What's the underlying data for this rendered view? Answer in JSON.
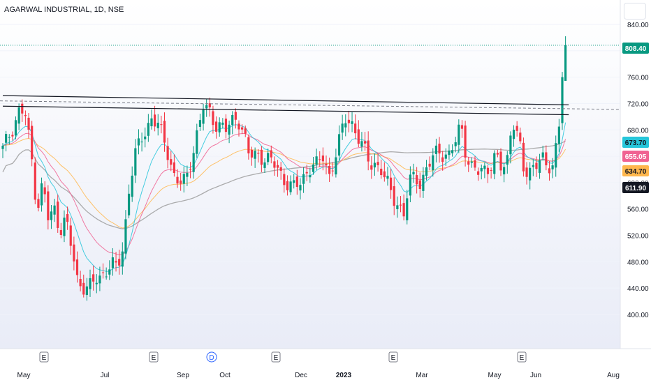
{
  "title": "AGARWAL INDUSTRIAL, 1D, NSE",
  "chart_data": {
    "type": "candlestick",
    "symbol": "AGARWAL INDUSTRIAL",
    "interval": "1D",
    "exchange": "NSE",
    "ylim": [
      390,
      850
    ],
    "y_ticks": [
      "840.00",
      "800.00",
      "760.00",
      "720.00",
      "680.00",
      "640.00",
      "600.00",
      "560.00",
      "520.00",
      "480.00",
      "440.00",
      "400.00"
    ],
    "x_ticks": [
      "May",
      "Jul",
      "Sep",
      "Oct",
      "Dec",
      "2023",
      "Mar",
      "May",
      "Jun",
      "Aug"
    ],
    "price_labels": [
      {
        "text": "808.40",
        "value": 808.4,
        "color": "#089981",
        "fg": "#ffffff"
      },
      {
        "text": "673.70",
        "value": 673.7,
        "color": "#26c6da",
        "fg": "#131722"
      },
      {
        "text": "655.05",
        "value": 655.05,
        "color": "#f06292",
        "fg": "#ffffff"
      },
      {
        "text": "634.70",
        "value": 634.7,
        "color": "#ffb74d",
        "fg": "#131722"
      },
      {
        "text": "611.90",
        "value": 611.9,
        "color": "#131722",
        "fg": "#ffffff"
      }
    ],
    "event_markers": [
      {
        "label": "E",
        "type": "earnings"
      },
      {
        "label": "E",
        "type": "earnings"
      },
      {
        "label": "D",
        "type": "dividend"
      },
      {
        "label": "E",
        "type": "earnings"
      },
      {
        "label": "E",
        "type": "earnings"
      },
      {
        "label": "E",
        "type": "earnings"
      }
    ],
    "trendlines": [
      {
        "from": [
          0,
          732
        ],
        "to": [
          175,
          718
        ]
      },
      {
        "from": [
          0,
          716
        ],
        "to": [
          175,
          703
        ]
      }
    ],
    "last_price_line": 808.4,
    "colors": {
      "up": "#089981",
      "down": "#f23645",
      "ema1": "#26c6da",
      "ema2": "#f06292",
      "ema3": "#ffb74d",
      "ma200": "#9e9e9e",
      "trend": "#131722"
    }
  }
}
